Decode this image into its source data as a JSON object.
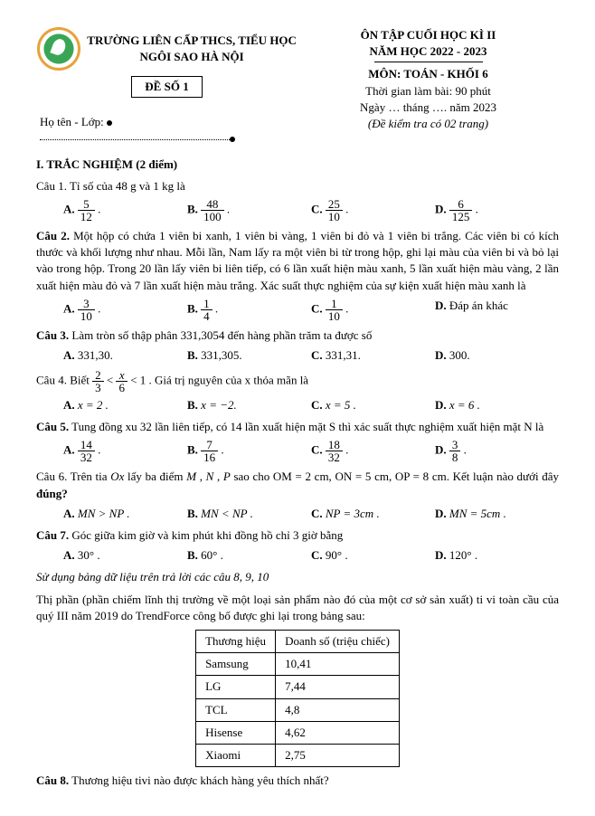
{
  "header": {
    "school_line1": "TRƯỜNG LIÊN CẤP THCS, TIỂU HỌC",
    "school_line2": "NGÔI SAO HÀ NỘI",
    "exam_no": "ĐỀ SỐ 1",
    "title1": "ÔN TẬP CUỐI HỌC KÌ II",
    "title2": "NĂM HỌC 2022 - 2023",
    "subject": "MÔN: TOÁN - KHỐI 6",
    "time": "Thời gian làm bài: 90 phút",
    "date": "Ngày … tháng …. năm 2023",
    "note": "(Đề kiểm tra có 02 trang)",
    "name_label": "Họ tên - Lớp:"
  },
  "sectionI": "I. TRẮC NGHIỆM (2 điểm)",
  "q1": {
    "text": "Câu 1. Tỉ số của 48 g và 1 kg là",
    "A_n": "5",
    "A_d": "12",
    "B_n": "48",
    "B_d": "100",
    "C_n": "25",
    "C_d": "10",
    "D_n": "6",
    "D_d": "125"
  },
  "q2": {
    "text": "Câu 2. Một hộp có chứa 1 viên bi xanh, 1 viên bi vàng, 1 viên bi đỏ và 1 viên bi trắng. Các viên bi có kích thước và khối lượng như nhau. Mỗi lần, Nam lấy ra một viên bi từ trong hộp, ghi lại màu của viên bi và bỏ lại vào trong hộp. Trong 20 lần lấy viên bi liên tiếp, có 6 lần xuất hiện màu xanh, 5 lần xuất hiện màu vàng, 2 lần xuất hiện màu đỏ và 7 lần xuất hiện màu trắng. Xác suất thực nghiệm của sự kiện xuất hiện màu xanh là",
    "A_n": "3",
    "A_d": "10",
    "B_n": "1",
    "B_d": "4",
    "C_n": "1",
    "C_d": "10",
    "D": "Đáp án khác"
  },
  "q3": {
    "text": "Câu 3. Làm tròn số thập phân 331,3054 đến hàng phần trăm ta được số",
    "A": "331,30.",
    "B": "331,305.",
    "C": "331,31.",
    "D": "300."
  },
  "q4": {
    "pre": "Câu 4. Biết ",
    "post": ". Giá trị nguyên của x thỏa mãn là",
    "f1n": "2",
    "f1d": "3",
    "f2n": "x",
    "f2d": "6",
    "A": "x = 2 .",
    "B": "x = −2.",
    "C": "x = 5 .",
    "D": "x = 6 ."
  },
  "q5": {
    "text": "Câu 5. Tung đồng xu 32 lần liên tiếp, có 14 lần xuất hiện mặt S thì xác suất thực nghiệm xuất hiện mặt N là",
    "A_n": "14",
    "A_d": "32",
    "B_n": "7",
    "B_d": "16",
    "C_n": "18",
    "C_d": "32",
    "D_n": "3",
    "D_d": "8"
  },
  "q6": {
    "text": "Câu 6. Trên tia Ox lấy ba điểm M , N , P sao cho OM = 2 cm, ON = 5 cm, OP = 8 cm. Kết luận nào dưới đây đúng?",
    "A": "MN > NP .",
    "B": "MN < NP .",
    "C": "NP = 3cm .",
    "D": "MN = 5cm ."
  },
  "q7": {
    "text": "Câu 7. Góc giữa kim giờ và kim phút khi đồng hồ chỉ 3 giờ bằng",
    "A": "30° .",
    "B": "60° .",
    "C": "90° .",
    "D": "120° ."
  },
  "note8910": "Sử dụng bảng dữ liệu trên trả lời các câu 8, 9, 10",
  "tablepara": "Thị phần (phần chiếm lĩnh thị trường về một loại sản phẩm nào đó của một cơ sở sản xuất) ti vi toàn cầu của quý III năm 2019 do TrendForce công bố được ghi lại trong bảng sau:",
  "table": {
    "h1": "Thương hiệu",
    "h2": "Doanh số (triệu chiếc)",
    "rows": [
      [
        "Samsung",
        "10,41"
      ],
      [
        "LG",
        "7,44"
      ],
      [
        "TCL",
        "4,8"
      ],
      [
        "Hisense",
        "4,62"
      ],
      [
        "Xiaomi",
        "2,75"
      ]
    ]
  },
  "q8": "Câu 8. Thương hiệu tivi nào được khách hàng yêu thích nhất?"
}
